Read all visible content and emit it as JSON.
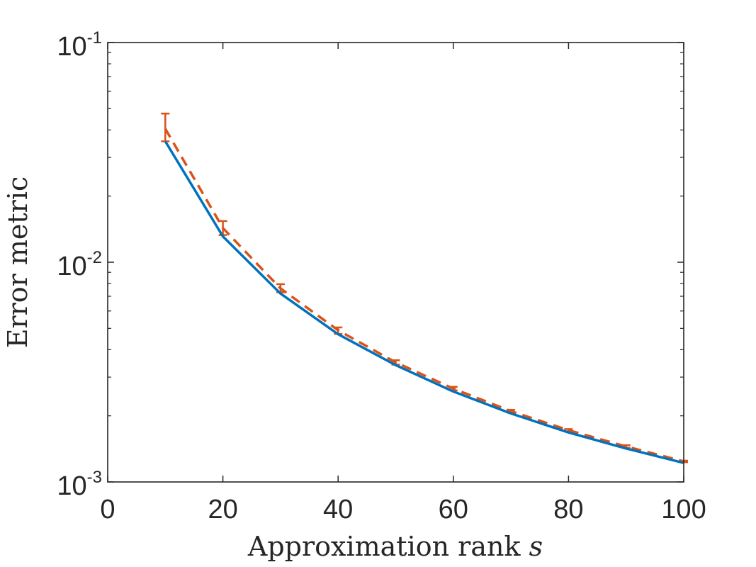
{
  "chart_data": {
    "type": "line",
    "xlabel": "Approximation rank",
    "xlabel_symbol": "s",
    "ylabel": "Error metric",
    "xlim": [
      0,
      100
    ],
    "ylim": [
      0.001,
      0.1
    ],
    "yscale": "log",
    "grid": false,
    "x_ticks": [
      0,
      20,
      40,
      60,
      80,
      100
    ],
    "x_tick_labels": [
      "0",
      "20",
      "40",
      "60",
      "80",
      "100"
    ],
    "y_ticks": [
      0.001,
      0.01,
      0.1
    ],
    "y_tick_labels": [
      {
        "base": "10",
        "exp": "-3"
      },
      {
        "base": "10",
        "exp": "-2"
      },
      {
        "base": "10",
        "exp": "-1"
      }
    ],
    "x": [
      10,
      20,
      30,
      40,
      50,
      60,
      70,
      80,
      90,
      100
    ],
    "series": [
      {
        "style": "solid",
        "color": "#0072BD",
        "values": [
          0.0355,
          0.0131,
          0.0072,
          0.0047,
          0.0034,
          0.00258,
          0.00205,
          0.00168,
          0.00142,
          0.00122
        ]
      },
      {
        "style": "dashed",
        "color": "#D95319",
        "values": [
          0.0405,
          0.0143,
          0.0076,
          0.0049,
          0.0035,
          0.00266,
          0.0021,
          0.00172,
          0.00145,
          0.00124
        ],
        "error_low": [
          0.0355,
          0.0133,
          0.0073,
          0.00472,
          0.00342,
          0.00261,
          0.00207,
          0.0017,
          0.00143,
          0.00123
        ],
        "error_high": [
          0.0475,
          0.0154,
          0.00795,
          0.00505,
          0.00358,
          0.00271,
          0.00213,
          0.00174,
          0.00147,
          0.00125
        ]
      }
    ]
  }
}
